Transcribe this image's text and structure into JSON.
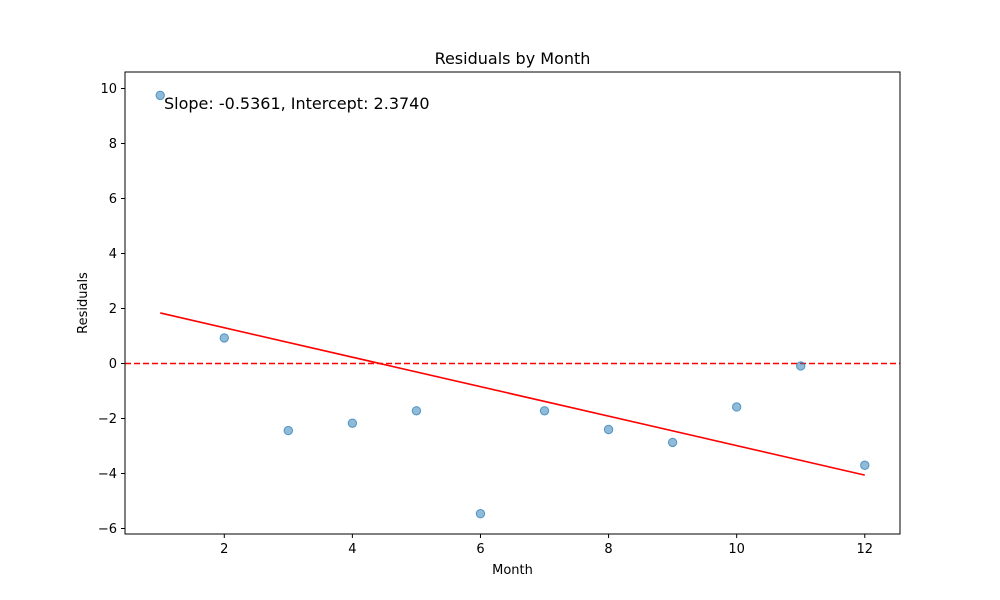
{
  "chart_data": {
    "type": "scatter",
    "title": "Residuals by Month",
    "xlabel": "Month",
    "ylabel": "Residuals",
    "xlim": [
      0.45,
      12.55
    ],
    "ylim": [
      -6.2,
      10.6
    ],
    "xticks": [
      2,
      4,
      6,
      8,
      10,
      12
    ],
    "yticks": [
      -6,
      -4,
      -2,
      0,
      2,
      4,
      6,
      8,
      10
    ],
    "xtick_labels": [
      "2",
      "4",
      "6",
      "8",
      "10",
      "12"
    ],
    "ytick_labels": [
      "−6",
      "−4",
      "−2",
      "0",
      "2",
      "4",
      "6",
      "8",
      "10"
    ],
    "grid": false,
    "series": [
      {
        "kind": "scatter",
        "color": "#1f77b4",
        "alpha": 0.5,
        "x": [
          1,
          2,
          3,
          4,
          5,
          6,
          7,
          8,
          9,
          10,
          11,
          12
        ],
        "y": [
          9.75,
          0.93,
          -2.44,
          -2.17,
          -1.72,
          -5.46,
          -1.72,
          -2.4,
          -2.87,
          -1.58,
          -0.09,
          -3.7
        ]
      },
      {
        "kind": "fit-line",
        "color": "#ff0000",
        "slope": -0.5361,
        "intercept": 2.374,
        "x": [
          1,
          12
        ]
      },
      {
        "kind": "reference-line",
        "color": "#ff0000",
        "style": "dashed",
        "y": 0
      }
    ],
    "annotation": "Slope: -0.5361, Intercept: 2.3740"
  }
}
